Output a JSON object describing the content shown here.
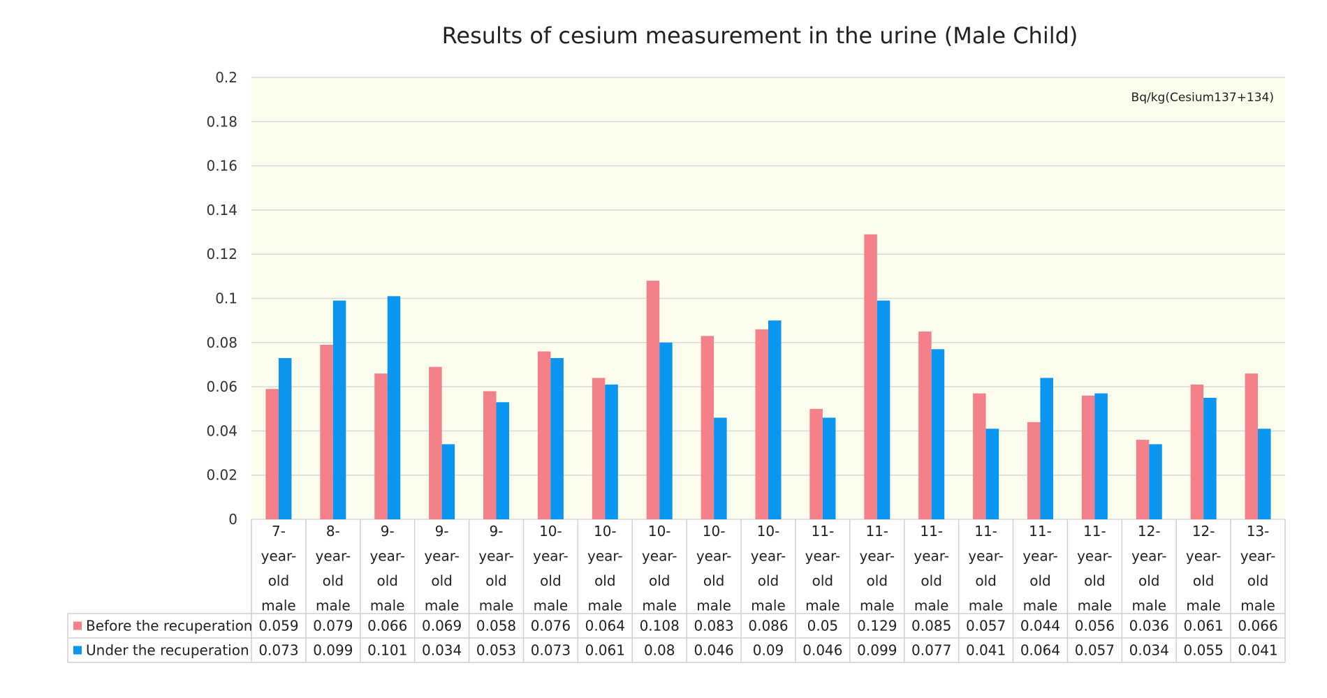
{
  "chart_data": {
    "type": "bar",
    "title": "Results of cesium measurement in the urine (Male Child)",
    "unit_label": "Bq/kg(Cesium137+134)",
    "xlabel": "",
    "ylabel": "",
    "ylim": [
      0,
      0.2
    ],
    "yticks": [
      "0",
      "0.02",
      "0.04",
      "0.06",
      "0.08",
      "0.1",
      "0.12",
      "0.14",
      "0.16",
      "0.18",
      "0.2"
    ],
    "grid": true,
    "legend": "data-table-left",
    "categories": [
      [
        "7-",
        "year-",
        "old",
        "male"
      ],
      [
        "8-",
        "year-",
        "old",
        "male"
      ],
      [
        "9-",
        "year-",
        "old",
        "male"
      ],
      [
        "9-",
        "year-",
        "old",
        "male"
      ],
      [
        "9-",
        "year-",
        "old",
        "male"
      ],
      [
        "10-",
        "year-",
        "old",
        "male"
      ],
      [
        "10-",
        "year-",
        "old",
        "male"
      ],
      [
        "10-",
        "year-",
        "old",
        "male"
      ],
      [
        "10-",
        "year-",
        "old",
        "male"
      ],
      [
        "10-",
        "year-",
        "old",
        "male"
      ],
      [
        "11-",
        "year-",
        "old",
        "male"
      ],
      [
        "11-",
        "year-",
        "old",
        "male"
      ],
      [
        "11-",
        "year-",
        "old",
        "male"
      ],
      [
        "11-",
        "year-",
        "old",
        "male"
      ],
      [
        "11-",
        "year-",
        "old",
        "male"
      ],
      [
        "11-",
        "year-",
        "old",
        "male"
      ],
      [
        "12-",
        "year-",
        "old",
        "male"
      ],
      [
        "12-",
        "year-",
        "old",
        "male"
      ],
      [
        "13-",
        "year-",
        "old",
        "male"
      ]
    ],
    "series": [
      {
        "name": "Before the recuperation",
        "color": "#F4808A",
        "values": [
          0.059,
          0.079,
          0.066,
          0.069,
          0.058,
          0.076,
          0.064,
          0.108,
          0.083,
          0.086,
          0.05,
          0.129,
          0.085,
          0.057,
          0.044,
          0.056,
          0.036,
          0.061,
          0.066
        ],
        "labels": [
          "0.059",
          "0.079",
          "0.066",
          "0.069",
          "0.058",
          "0.076",
          "0.064",
          "0.108",
          "0.083",
          "0.086",
          "0.05",
          "0.129",
          "0.085",
          "0.057",
          "0.044",
          "0.056",
          "0.036",
          "0.061",
          "0.066"
        ]
      },
      {
        "name": "Under the recuperation",
        "color": "#0A96F0",
        "values": [
          0.073,
          0.099,
          0.101,
          0.034,
          0.053,
          0.073,
          0.061,
          0.08,
          0.046,
          0.09,
          0.046,
          0.099,
          0.077,
          0.041,
          0.064,
          0.057,
          0.034,
          0.055,
          0.041
        ],
        "labels": [
          "0.073",
          "0.099",
          "0.101",
          "0.034",
          "0.053",
          "0.073",
          "0.061",
          "0.08",
          "0.046",
          "0.09",
          "0.046",
          "0.099",
          "0.077",
          "0.041",
          "0.064",
          "0.057",
          "0.034",
          "0.055",
          "0.041"
        ]
      }
    ],
    "colors": {
      "plot_background": "#FDFDEE",
      "grid": "#D9D9D9",
      "table_border": "#D0D0D0"
    }
  }
}
